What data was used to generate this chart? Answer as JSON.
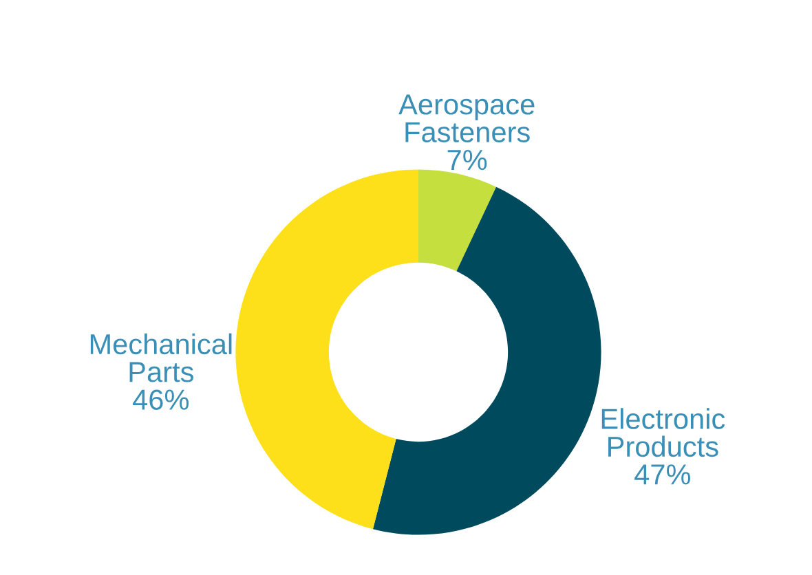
{
  "chart_data": {
    "type": "donut",
    "categories": [
      "Aerospace Fasteners",
      "Electronic Products",
      "Mechanical Parts"
    ],
    "values": [
      7,
      47,
      46
    ],
    "colors": [
      "#c5e03e",
      "#004a5e",
      "#fde01a"
    ],
    "value_labels": [
      "7%",
      "47%",
      "46%"
    ],
    "legend": false
  }
}
